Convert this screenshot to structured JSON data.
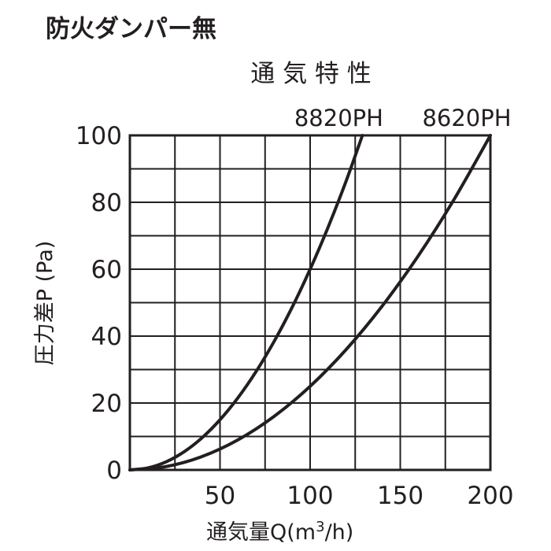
{
  "heading": "防火ダンパー無",
  "chart_data": {
    "type": "line",
    "title": "通 気 特 性",
    "xlabel_main": "通気量Q",
    "xlabel_unit_open": "(m",
    "xlabel_unit_sup": "3",
    "xlabel_unit_close": "/h)",
    "ylabel": "圧力差P (Pa)",
    "xlim": [
      0,
      200
    ],
    "ylim": [
      0,
      100
    ],
    "x_ticks": [
      50,
      100,
      150,
      200
    ],
    "y_ticks": [
      0,
      20,
      40,
      60,
      80,
      100
    ],
    "grid": true,
    "line_color": "#231f20",
    "series": [
      {
        "name": "8820PH",
        "x": [
          0,
          10,
          20,
          30,
          40,
          50,
          60,
          70,
          80,
          90,
          100,
          110,
          120,
          129
        ],
        "y": [
          0,
          0.6,
          2.4,
          5.4,
          9.6,
          15,
          21.6,
          29.4,
          38.4,
          48.6,
          60,
          72.6,
          86.4,
          100
        ]
      },
      {
        "name": "8620PH",
        "x": [
          0,
          20,
          40,
          60,
          80,
          100,
          120,
          140,
          160,
          180,
          200
        ],
        "y": [
          0,
          1,
          4,
          9,
          16,
          25,
          36,
          49,
          64,
          81,
          100
        ]
      }
    ]
  }
}
